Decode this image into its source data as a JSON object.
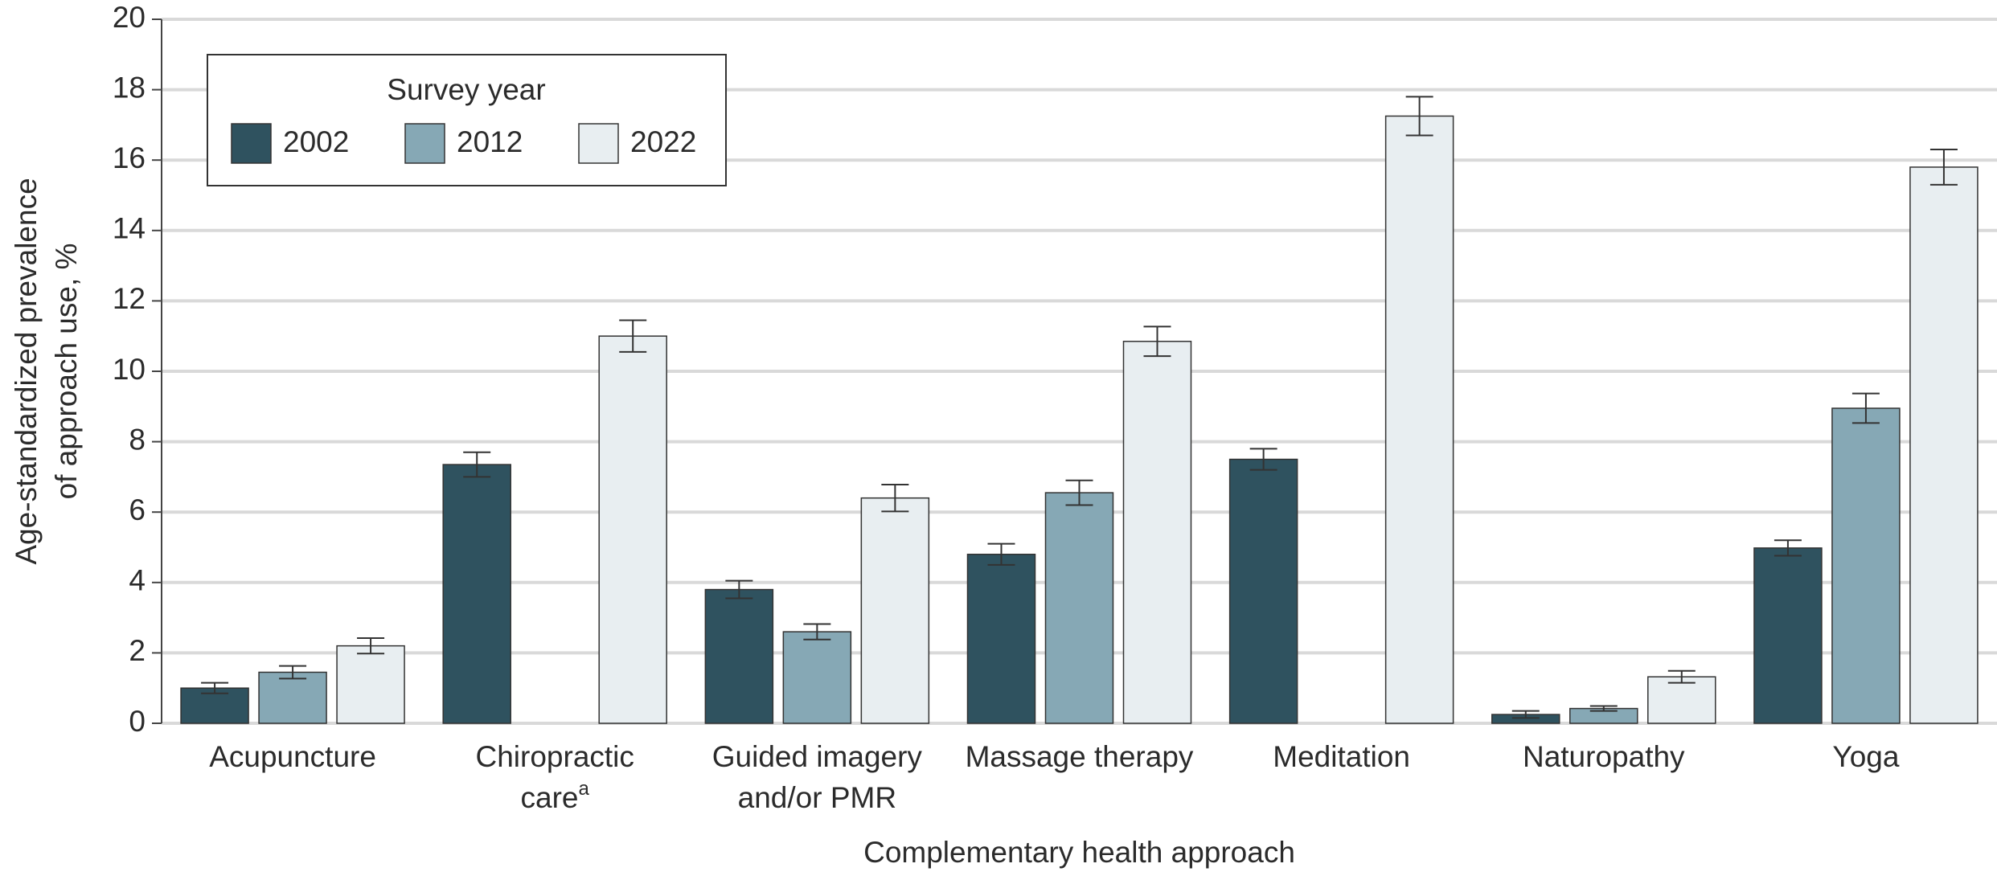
{
  "chart_data": {
    "type": "bar",
    "x_label": "Complementary health approach",
    "y_label": [
      "Age-standardized prevalence",
      "of approach use, %"
    ],
    "categories": [
      [
        "Acupuncture"
      ],
      [
        "Chiropractic",
        "care"
      ],
      [
        "Guided imagery",
        "and/or PMR"
      ],
      [
        "Massage therapy"
      ],
      [
        "Meditation"
      ],
      [
        "Naturopathy"
      ],
      [
        "Yoga"
      ]
    ],
    "category_footnotes": [
      null,
      "a",
      null,
      null,
      null,
      null,
      null
    ],
    "legend_title": "Survey year",
    "legend": "upper left",
    "grid": true,
    "ylim": [
      0,
      20
    ],
    "yticks": [
      0,
      2,
      4,
      6,
      8,
      10,
      12,
      14,
      16,
      18,
      20
    ],
    "series": [
      {
        "name": "2002",
        "color": "#2f525f",
        "values": [
          1.0,
          7.35,
          3.8,
          4.8,
          7.5,
          0.25,
          4.98
        ],
        "errors": [
          0.15,
          0.35,
          0.25,
          0.3,
          0.3,
          0.1,
          0.22
        ]
      },
      {
        "name": "2012",
        "color": "#86a8b5",
        "values": [
          1.45,
          null,
          2.6,
          6.55,
          null,
          0.42,
          8.95
        ],
        "errors": [
          0.18,
          null,
          0.22,
          0.35,
          null,
          0.07,
          0.42
        ]
      },
      {
        "name": "2022",
        "color": "#e8eef1",
        "values": [
          2.2,
          11.0,
          6.4,
          10.85,
          17.25,
          1.32,
          15.8
        ],
        "errors": [
          0.22,
          0.45,
          0.38,
          0.42,
          0.55,
          0.17,
          0.5
        ]
      }
    ]
  }
}
